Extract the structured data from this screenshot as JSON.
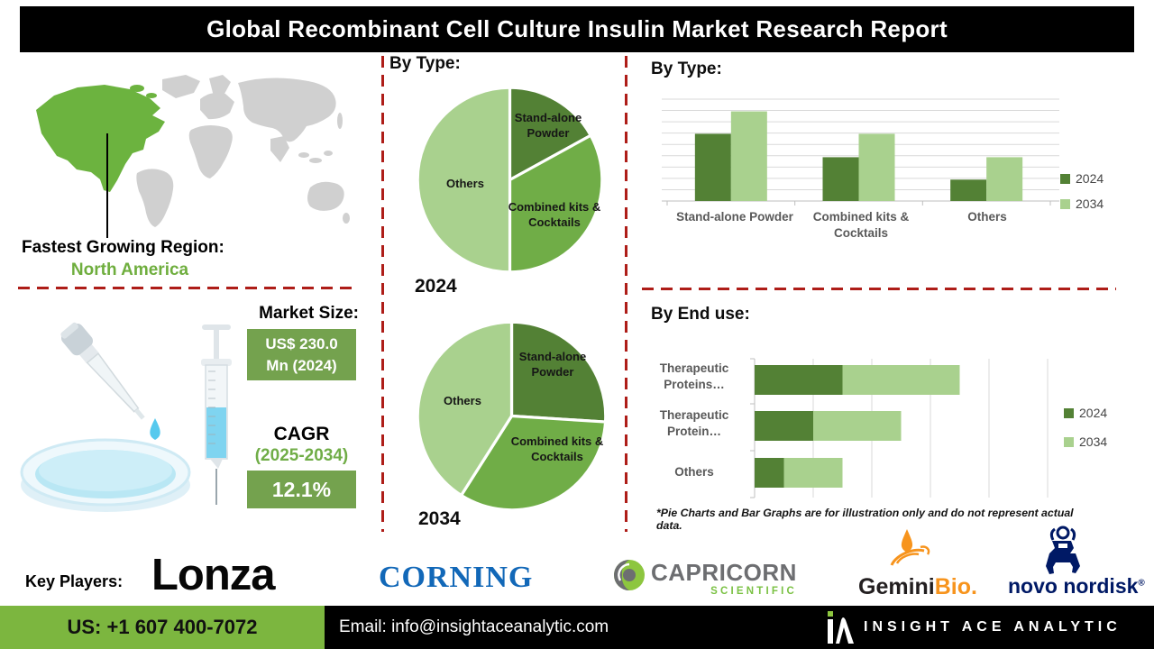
{
  "title": "Global Recombinant Cell Culture Insulin Market Research Report",
  "colors": {
    "accent_dark_green": "#538135",
    "accent_mid_green": "#70AD47",
    "accent_light_green": "#A9D18E",
    "map_highlight_green": "#6CB33F",
    "box_green": "#74A24E",
    "footer_green": "#7CB63F",
    "divider_red": "#AE1D18",
    "title_bar_black": "#000000",
    "corning_blue": "#1268B8",
    "capricorn_green": "#7AC143",
    "gemini_orange": "#F7941D",
    "novo_navy": "#001965"
  },
  "map": {
    "region_label": "Fastest Growing Region:",
    "region_value": "North America"
  },
  "market": {
    "label": "Market Size:",
    "size_line1": "US$ 230.0",
    "size_line2": "Mn (2024)",
    "cagr_label": "CAGR",
    "cagr_period": "(2025-2034)",
    "cagr_value": "12.1%"
  },
  "chart_data": [
    {
      "type": "pie",
      "title": "By Type:",
      "year": "2024",
      "labels": [
        "Stand-alone Powder",
        "Combined kits & Cocktails",
        "Others"
      ],
      "values": [
        17,
        33,
        50
      ],
      "colors": [
        "#538135",
        "#70AD47",
        "#A9D18E"
      ],
      "note": "illustrative"
    },
    {
      "type": "pie",
      "title": "By Type:",
      "year": "2034",
      "labels": [
        "Stand-alone Powder",
        "Combined kits & Cocktails",
        "Others"
      ],
      "values": [
        26,
        33,
        41
      ],
      "colors": [
        "#538135",
        "#70AD47",
        "#A9D18E"
      ],
      "note": "illustrative"
    },
    {
      "type": "bar",
      "title": "By Type:",
      "categories": [
        "Stand-alone Powder",
        "Combined kits & Cocktails",
        "Others"
      ],
      "series": [
        {
          "name": "2024",
          "values": [
            66,
            43,
            21
          ],
          "color": "#538135"
        },
        {
          "name": "2034",
          "values": [
            88,
            66,
            43
          ],
          "color": "#A9D18E"
        }
      ],
      "ylim": [
        0,
        100
      ],
      "grid": true,
      "legend_position": "right",
      "note": "illustrative"
    },
    {
      "type": "stacked-bar-horizontal",
      "title": "By End use:",
      "categories": [
        "Therapeutic Proteins…",
        "Therapeutic Protein…",
        "Others"
      ],
      "series": [
        {
          "name": "2024",
          "values": [
            1.5,
            1.0,
            0.5
          ],
          "color": "#538135"
        },
        {
          "name": "2034",
          "values": [
            2.0,
            1.5,
            1.0
          ],
          "color": "#A9D18E"
        }
      ],
      "xlim": [
        0,
        5
      ],
      "grid": true,
      "legend_position": "right",
      "note": "illustrative"
    }
  ],
  "disclaimer": "*Pie Charts and Bar Graphs are for illustration only and do not represent actual data.",
  "key_players": {
    "label": "Key Players:",
    "lonza": "Lonza",
    "corning": "CORNING",
    "capricorn_line1": "CAPRICORN",
    "capricorn_line2": "SCIENTIFIC",
    "gemini_part1": "Gemini",
    "gemini_part2": "Bio.",
    "novo": "novo nordisk",
    "novo_reg": "®"
  },
  "footer": {
    "phone": "US: +1 607 400-7072",
    "email": "Email: info@insightaceanalytic.com",
    "brand": "INSIGHT ACE ANALYTIC"
  }
}
